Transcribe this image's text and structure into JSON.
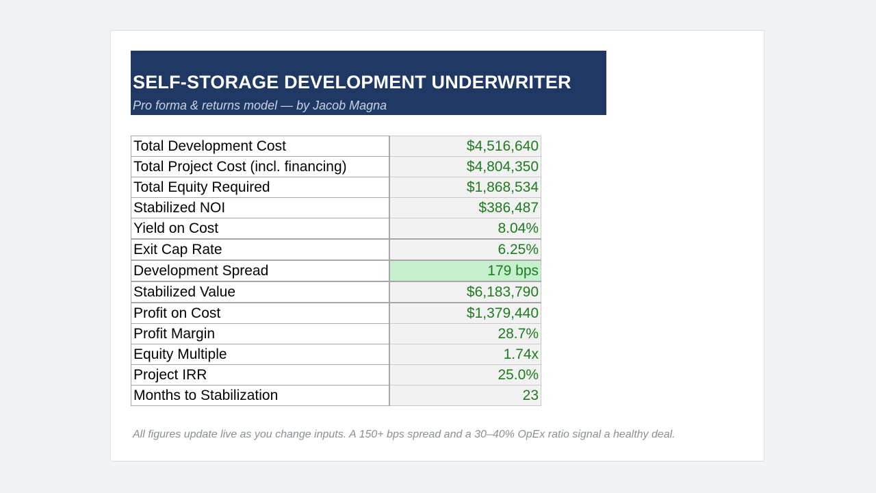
{
  "header": {
    "title": "SELF-STORAGE DEVELOPMENT UNDERWRITER",
    "subtitle": "Pro forma & returns model  —  by Jacob Magna",
    "background_color": "#1f3864"
  },
  "metrics": [
    {
      "label": "Total Development Cost",
      "value": "$4,516,640"
    },
    {
      "label": "Total Project Cost (incl. financing)",
      "value": "$4,804,350"
    },
    {
      "label": "Total Equity Required",
      "value": "$1,868,534"
    },
    {
      "label": "Stabilized NOI",
      "value": "$386,487"
    },
    {
      "label": "Yield on Cost",
      "value": "8.04%"
    },
    {
      "label": "Exit Cap Rate",
      "value": "6.25%"
    },
    {
      "label": "Development Spread",
      "value": "179 bps"
    },
    {
      "label": "Stabilized Value",
      "value": "$6,183,790"
    },
    {
      "label": "Profit on Cost",
      "value": "$1,379,440"
    },
    {
      "label": "Profit Margin",
      "value": "28.7%"
    },
    {
      "label": "Equity Multiple",
      "value": "1.74x"
    },
    {
      "label": "Project IRR",
      "value": "25.0%"
    },
    {
      "label": "Months to Stabilization",
      "value": "23"
    }
  ],
  "footer_note": "All figures update live as you change inputs.  A 150+ bps spread and a 30–40% OpEx ratio signal a healthy deal.",
  "colors": {
    "value_text": "#1e7b1e",
    "highlight_fill": "#c6efce",
    "page_background": "#f1f3f5"
  }
}
